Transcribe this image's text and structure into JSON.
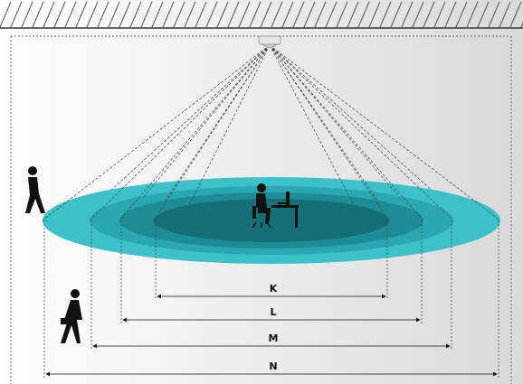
{
  "dimensions": [
    {
      "label": "K"
    },
    {
      "label": "L"
    },
    {
      "label": "M"
    },
    {
      "label": "N"
    }
  ]
}
